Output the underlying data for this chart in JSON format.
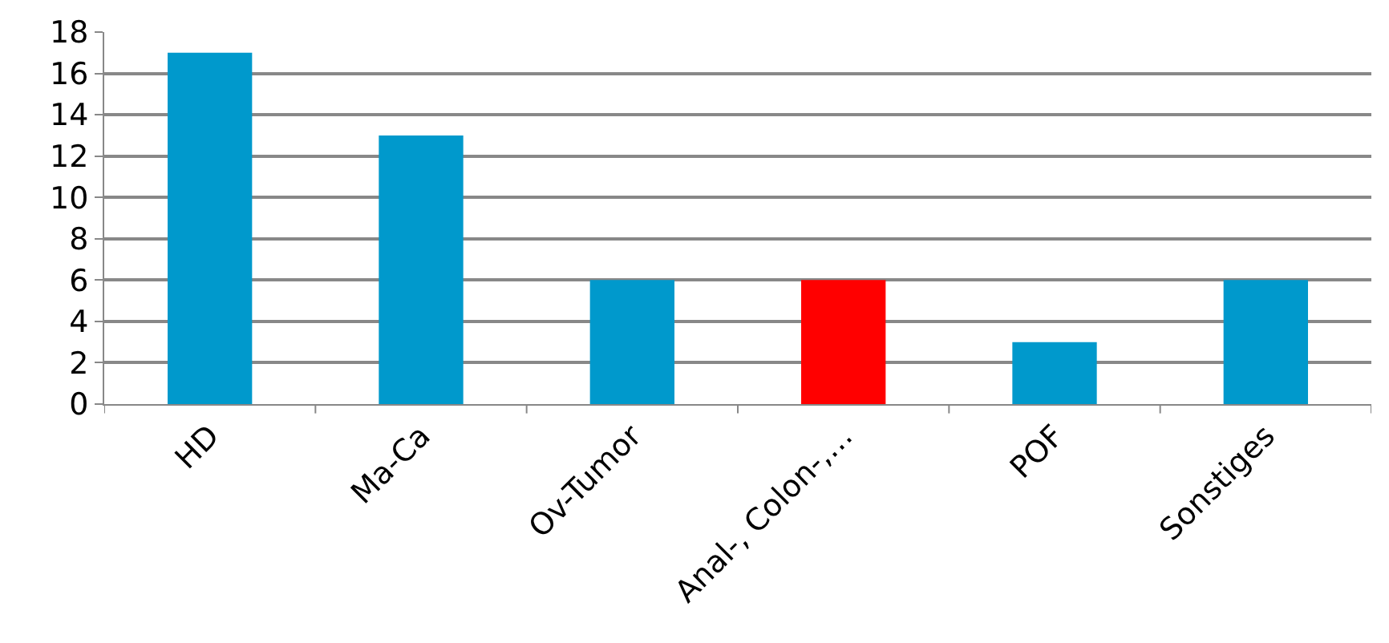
{
  "chart_data": {
    "type": "bar",
    "categories": [
      "HD",
      "Ma-Ca",
      "Ov-Tumor",
      "Anal-, Colon-,…",
      "POF",
      "Sonstiges"
    ],
    "values": [
      17,
      13,
      6,
      6,
      3,
      6
    ],
    "colors": [
      "#0099cc",
      "#0099cc",
      "#0099cc",
      "#ff0000",
      "#0099cc",
      "#0099cc"
    ],
    "ylim": [
      0,
      18
    ],
    "yticks": [
      0,
      2,
      4,
      6,
      8,
      10,
      12,
      14,
      16,
      18
    ],
    "grid": "y"
  }
}
